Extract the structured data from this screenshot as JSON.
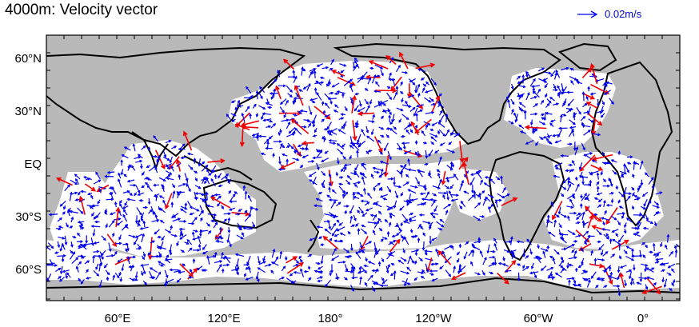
{
  "title": "4000m: Velocity vector",
  "legend": {
    "label": "0.02m/s",
    "arrow_color": "#0000ee"
  },
  "axes": {
    "y_labels": [
      "60°N",
      "30°N",
      "EQ",
      "30°S",
      "60°S"
    ],
    "x_labels": [
      "60°E",
      "120°E",
      "180°",
      "120°W",
      "60°W",
      "0°"
    ]
  },
  "colors": {
    "land": "#b9b9b9",
    "ocean": "#ffffff",
    "coast": "#000000",
    "small_vector": "#0000ee",
    "large_vector": "#ee0000"
  },
  "regions": [
    "north-pacific",
    "south-pacific",
    "north-atlantic",
    "south-atlantic",
    "indian-ocean",
    "southern-ocean"
  ]
}
